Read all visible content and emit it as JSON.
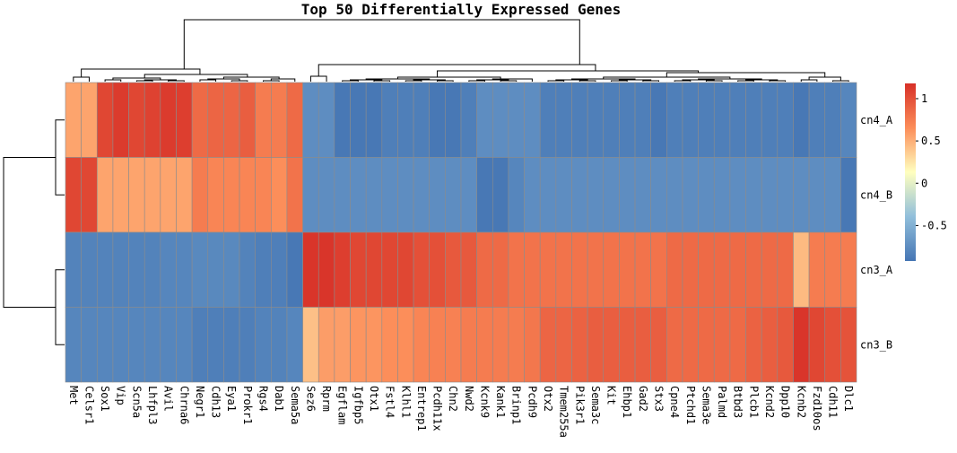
{
  "chart_data": {
    "type": "heatmap",
    "title": "Top 50 Differentially Expressed Genes",
    "columns": [
      "Met",
      "Celsr1",
      "Sox1",
      "Vip",
      "Scn5a",
      "Lhfpl3",
      "Avil",
      "Chrna6",
      "Negr1",
      "Cdh13",
      "Eya1",
      "Prokr1",
      "Rgs4",
      "Dab1",
      "Sema5a",
      "Sez6",
      "Rprm",
      "Egflam",
      "Igfbp5",
      "Otx1",
      "Fstl4",
      "Klhl1",
      "Entrep1",
      "Pcdh11x",
      "Chn2",
      "Nwd2",
      "Kcnk9",
      "Kank1",
      "Brinp1",
      "Pcdh9",
      "Otx2",
      "Tmem255a",
      "Pik3r1",
      "Sema3c",
      "Kit",
      "Ehbp1",
      "Gad2",
      "Stx3",
      "Cpne4",
      "Ptchd1",
      "Sema3e",
      "Palmd",
      "Btbd3",
      "Plcb1",
      "Kcnd2",
      "Dpp10",
      "Kcnb2",
      "Fzd10os",
      "Cdh11",
      "Dlc1"
    ],
    "rows": [
      "cn4_A",
      "cn4_B",
      "cn3_A",
      "cn3_B"
    ],
    "values": [
      [
        0.55,
        0.55,
        1.05,
        1.12,
        1.05,
        1.08,
        1.12,
        1.1,
        0.85,
        0.88,
        0.88,
        0.92,
        0.75,
        0.75,
        0.85,
        -0.75,
        -0.75,
        -0.9,
        -0.9,
        -0.9,
        -0.85,
        -0.85,
        -0.85,
        -0.9,
        -0.9,
        -0.85,
        -0.75,
        -0.75,
        -0.75,
        -0.75,
        -0.85,
        -0.85,
        -0.85,
        -0.85,
        -0.85,
        -0.85,
        -0.85,
        -0.9,
        -0.85,
        -0.85,
        -0.85,
        -0.85,
        -0.85,
        -0.85,
        -0.85,
        -0.85,
        -0.9,
        -0.85,
        -0.85,
        -0.8
      ],
      [
        1.05,
        1.05,
        0.55,
        0.55,
        0.55,
        0.55,
        0.55,
        0.55,
        0.75,
        0.7,
        0.7,
        0.7,
        0.7,
        0.65,
        0.8,
        -0.75,
        -0.75,
        -0.75,
        -0.75,
        -0.75,
        -0.75,
        -0.75,
        -0.75,
        -0.75,
        -0.75,
        -0.75,
        -0.9,
        -0.9,
        -0.8,
        -0.75,
        -0.75,
        -0.75,
        -0.75,
        -0.75,
        -0.75,
        -0.75,
        -0.75,
        -0.75,
        -0.75,
        -0.75,
        -0.75,
        -0.75,
        -0.75,
        -0.75,
        -0.75,
        -0.75,
        -0.75,
        -0.75,
        -0.75,
        -0.9
      ],
      [
        -0.82,
        -0.82,
        -0.82,
        -0.82,
        -0.82,
        -0.82,
        -0.8,
        -0.8,
        -0.78,
        -0.78,
        -0.78,
        -0.82,
        -0.85,
        -0.85,
        -0.9,
        1.15,
        1.15,
        1.1,
        1.05,
        1.05,
        1.05,
        1.05,
        1.0,
        1.0,
        0.95,
        0.95,
        0.85,
        0.85,
        0.8,
        0.8,
        0.8,
        0.8,
        0.8,
        0.8,
        0.8,
        0.8,
        0.8,
        0.8,
        0.85,
        0.85,
        0.85,
        0.85,
        0.85,
        0.85,
        0.85,
        0.85,
        0.45,
        0.75,
        0.75,
        0.75
      ],
      [
        -0.8,
        -0.8,
        -0.8,
        -0.8,
        -0.8,
        -0.8,
        -0.8,
        -0.8,
        -0.85,
        -0.85,
        -0.85,
        -0.85,
        -0.82,
        -0.82,
        -0.8,
        0.42,
        0.58,
        0.58,
        0.62,
        0.62,
        0.65,
        0.65,
        0.7,
        0.72,
        0.72,
        0.75,
        0.75,
        0.75,
        0.75,
        0.78,
        0.88,
        0.88,
        0.9,
        0.92,
        0.92,
        0.92,
        0.92,
        0.92,
        0.85,
        0.85,
        0.85,
        0.85,
        0.85,
        0.9,
        0.92,
        0.95,
        1.15,
        1.05,
        1.0,
        0.98
      ]
    ],
    "colorbar": {
      "ticks": [
        1,
        0.5,
        0,
        -0.5
      ],
      "tick_labels": [
        "1",
        "0.5",
        "0",
        "-0.5"
      ],
      "range": [
        -0.92,
        1.18
      ],
      "colors": [
        "#4575b4",
        "#91bfdb",
        "#ffffbf",
        "#fc8d59",
        "#d73027"
      ]
    },
    "dendrograms": {
      "rows": true,
      "columns": true
    }
  }
}
